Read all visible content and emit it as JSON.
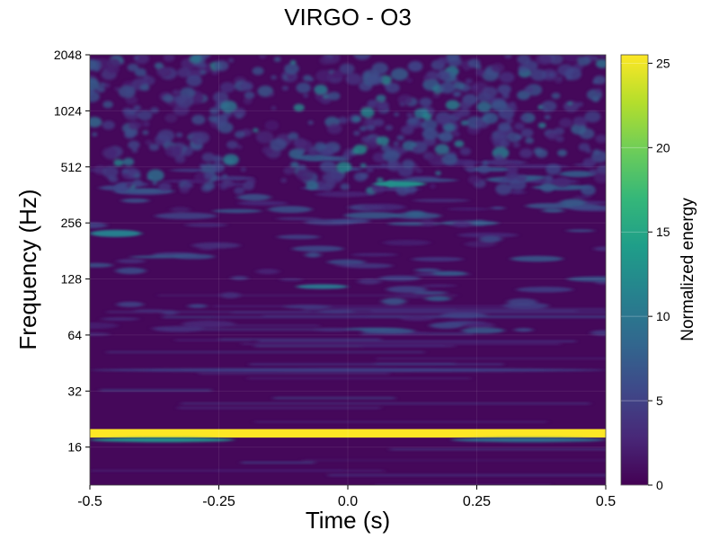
{
  "chart_data": {
    "type": "heatmap",
    "title": "VIRGO - O3",
    "xlabel": "Time (s)",
    "ylabel": "Frequency (Hz)",
    "xlim": [
      -0.5,
      0.5
    ],
    "ylim": [
      10,
      2048
    ],
    "yscale": "log2",
    "x_ticks": [
      {
        "value": -0.5,
        "label": "-0.5"
      },
      {
        "value": -0.25,
        "label": "-0.25"
      },
      {
        "value": 0.0,
        "label": "0.0"
      },
      {
        "value": 0.25,
        "label": "0.25"
      },
      {
        "value": 0.5,
        "label": "0.5"
      }
    ],
    "y_ticks": [
      {
        "value": 16,
        "label": "16"
      },
      {
        "value": 32,
        "label": "32"
      },
      {
        "value": 64,
        "label": "64"
      },
      {
        "value": 128,
        "label": "128"
      },
      {
        "value": 256,
        "label": "256"
      },
      {
        "value": 512,
        "label": "512"
      },
      {
        "value": 1024,
        "label": "1024"
      },
      {
        "value": 2048,
        "label": "2048"
      }
    ],
    "colorbar": {
      "label": "Normalized energy",
      "colormap": "viridis",
      "range": [
        0,
        25.5
      ],
      "ticks": [
        {
          "value": 0,
          "label": "0"
        },
        {
          "value": 5,
          "label": "5"
        },
        {
          "value": 10,
          "label": "10"
        },
        {
          "value": 15,
          "label": "15"
        },
        {
          "value": 20,
          "label": "20"
        },
        {
          "value": 25,
          "label": "25"
        }
      ]
    },
    "grid": true,
    "features": [
      {
        "t_start": -0.5,
        "t_end": 0.5,
        "f_low": 18.0,
        "f_high": 20.0,
        "energy": 25.5
      },
      {
        "t_start": -0.5,
        "t_end": -0.22,
        "f_low": 17.0,
        "f_high": 18.0,
        "energy": 13
      },
      {
        "t_start": 0.2,
        "t_end": 0.5,
        "f_low": 17.0,
        "f_high": 18.0,
        "energy": 9
      },
      {
        "t_start": -0.5,
        "t_end": 0.5,
        "f_low": 40.5,
        "f_high": 42.5,
        "energy": 5
      },
      {
        "t_start": -0.1,
        "t_end": 0.0,
        "f_low": 113,
        "f_high": 120,
        "energy": 10
      },
      {
        "t_start": 0.05,
        "t_end": 0.15,
        "f_low": 400,
        "f_high": 430,
        "energy": 13
      },
      {
        "t_start": -0.5,
        "t_end": -0.4,
        "f_low": 215,
        "f_high": 235,
        "energy": 11
      }
    ]
  }
}
